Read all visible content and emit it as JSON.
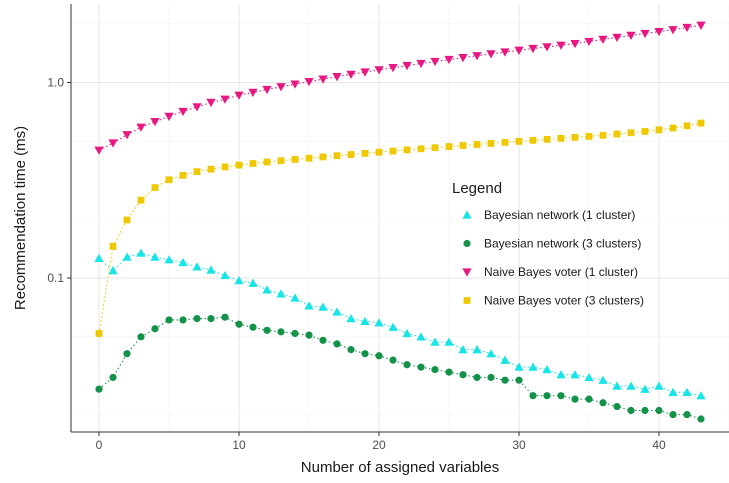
{
  "chart_data": {
    "type": "scatter",
    "title": "",
    "xlabel": "Number of assigned variables",
    "ylabel": "Recommendation time (ms)",
    "x_scale": "linear",
    "y_scale": "log",
    "xlim": [
      -2,
      45
    ],
    "ylim": [
      0.0163,
      2.52
    ],
    "x_ticks": [
      0,
      10,
      20,
      30,
      40
    ],
    "x_tick_labels": [
      "0",
      "10",
      "20",
      "30",
      "40"
    ],
    "y_ticks": [
      0.1,
      1.0
    ],
    "y_tick_labels": [
      "0.1",
      "1.0"
    ],
    "grid": true,
    "legend": {
      "title": "Legend",
      "position": "right-center"
    },
    "x": [
      0,
      1,
      2,
      3,
      4,
      5,
      6,
      7,
      8,
      9,
      10,
      11,
      12,
      13,
      14,
      15,
      16,
      17,
      18,
      19,
      20,
      21,
      22,
      23,
      24,
      25,
      26,
      27,
      28,
      29,
      30,
      31,
      32,
      33,
      34,
      35,
      36,
      37,
      38,
      39,
      40,
      41,
      42,
      43
    ],
    "series": [
      {
        "name": "Bayesian network (1 cluster)",
        "color": "#17e5e5",
        "marker": "triangle-up",
        "values": [
          0.126,
          0.109,
          0.128,
          0.134,
          0.128,
          0.124,
          0.12,
          0.114,
          0.11,
          0.103,
          0.097,
          0.094,
          0.087,
          0.083,
          0.079,
          0.072,
          0.071,
          0.067,
          0.062,
          0.06,
          0.059,
          0.056,
          0.052,
          0.05,
          0.047,
          0.047,
          0.043,
          0.043,
          0.041,
          0.038,
          0.035,
          0.035,
          0.034,
          0.032,
          0.032,
          0.031,
          0.03,
          0.028,
          0.028,
          0.027,
          0.028,
          0.026,
          0.026,
          0.025
        ]
      },
      {
        "name": "Bayesian network (3 clusters)",
        "color": "#14924a",
        "marker": "circle",
        "values": [
          0.027,
          0.031,
          0.041,
          0.05,
          0.055,
          0.061,
          0.061,
          0.062,
          0.062,
          0.063,
          0.058,
          0.056,
          0.054,
          0.053,
          0.052,
          0.051,
          0.048,
          0.046,
          0.043,
          0.041,
          0.04,
          0.038,
          0.036,
          0.035,
          0.034,
          0.033,
          0.032,
          0.031,
          0.031,
          0.03,
          0.03,
          0.025,
          0.025,
          0.025,
          0.024,
          0.024,
          0.023,
          0.022,
          0.021,
          0.021,
          0.021,
          0.02,
          0.02,
          0.019
        ]
      },
      {
        "name": "Naive Bayes voter (1 cluster)",
        "color": "#e81882",
        "marker": "triangle-down",
        "values": [
          0.45,
          0.49,
          0.54,
          0.59,
          0.63,
          0.67,
          0.71,
          0.75,
          0.79,
          0.82,
          0.86,
          0.89,
          0.92,
          0.95,
          0.98,
          1.01,
          1.04,
          1.07,
          1.1,
          1.13,
          1.16,
          1.19,
          1.22,
          1.25,
          1.28,
          1.31,
          1.34,
          1.37,
          1.4,
          1.43,
          1.46,
          1.49,
          1.52,
          1.55,
          1.58,
          1.62,
          1.66,
          1.7,
          1.74,
          1.78,
          1.82,
          1.86,
          1.91,
          1.96
        ]
      },
      {
        "name": "Naive Bayes voter (3 clusters)",
        "color": "#eec800",
        "marker": "square",
        "values": [
          0.052,
          0.145,
          0.198,
          0.25,
          0.29,
          0.318,
          0.335,
          0.35,
          0.36,
          0.37,
          0.378,
          0.385,
          0.392,
          0.398,
          0.404,
          0.41,
          0.416,
          0.422,
          0.428,
          0.434,
          0.44,
          0.446,
          0.452,
          0.458,
          0.464,
          0.47,
          0.476,
          0.482,
          0.488,
          0.494,
          0.5,
          0.506,
          0.512,
          0.518,
          0.524,
          0.53,
          0.537,
          0.545,
          0.553,
          0.562,
          0.572,
          0.585,
          0.6,
          0.62
        ]
      }
    ]
  }
}
